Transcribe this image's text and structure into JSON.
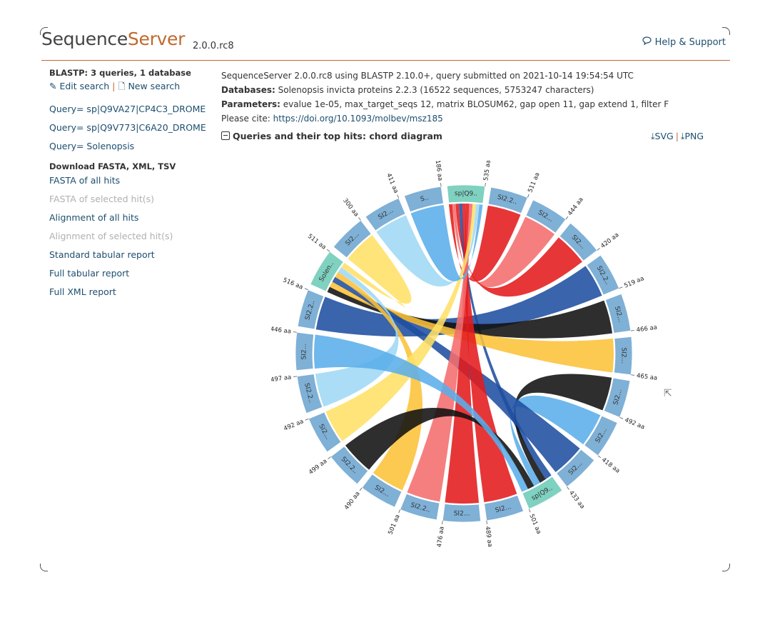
{
  "app": {
    "logo_seq": "Sequence",
    "logo_srv": "Server",
    "version": "2.0.0.rc8",
    "help": "Help & Support"
  },
  "sidebar": {
    "title": "BLASTP: 3 queries, 1 database",
    "edit_search": "Edit search",
    "new_search": "New search",
    "queries": [
      "Query= sp|Q9VA27|CP4C3_DROME",
      "Query= sp|Q9V773|C6A20_DROME",
      "Query= Solenopsis"
    ],
    "download_title": "Download FASTA, XML, TSV",
    "downloads": [
      {
        "label": "FASTA of all hits",
        "enabled": true
      },
      {
        "label": "FASTA of selected hit(s)",
        "enabled": false
      },
      {
        "label": "Alignment of all hits",
        "enabled": true
      },
      {
        "label": "Alignment of selected hit(s)",
        "enabled": false
      },
      {
        "label": "Standard tabular report",
        "enabled": true
      },
      {
        "label": "Full tabular report",
        "enabled": true
      },
      {
        "label": "Full XML report",
        "enabled": true
      }
    ]
  },
  "report": {
    "line1": "SequenceServer 2.0.0.rc8 using BLASTP 2.10.0+, query submitted on 2021-10-14 19:54:54 UTC",
    "db_label": "Databases:",
    "db_value": " Solenopsis invicta proteins 2.2.3 (16522 sequences, 5753247 characters)",
    "params_label": "Parameters:",
    "params_value": " evalue 1e-05, max_target_seqs 12, matrix BLOSUM62, gap open 11, gap extend 1, filter F",
    "cite_label": "Please cite: ",
    "cite_link": "https://doi.org/10.1093/molbev/msz185"
  },
  "chord": {
    "heading": "Queries and their top hits: chord diagram",
    "svg_label": "SVG",
    "png_label": "PNG",
    "colors": {
      "query": "#7fd1c0",
      "hit": "#7fb0d6",
      "navy": "#1f4fa0",
      "red": "#e41a1c",
      "lightred": "#f46d6d",
      "yellow": "#ffe066",
      "gold": "#fcc239",
      "lightblue": "#9fd8f5",
      "skyblue": "#5aaeea",
      "black": "#111111"
    },
    "arcs": [
      {
        "label": "sp|Q9..",
        "length": "535 aa",
        "type": "query"
      },
      {
        "label": "SI2.2..",
        "length": "511 aa",
        "type": "hit"
      },
      {
        "label": "SI2...",
        "length": "444 aa",
        "type": "hit"
      },
      {
        "label": "SI2...",
        "length": "420 aa",
        "type": "hit"
      },
      {
        "label": "SI2.2..",
        "length": "519 aa",
        "type": "hit"
      },
      {
        "label": "SI2...",
        "length": "466 aa",
        "type": "hit"
      },
      {
        "label": "SI2...",
        "length": "465 aa",
        "type": "hit"
      },
      {
        "label": "SI2...",
        "length": "492 aa",
        "type": "hit"
      },
      {
        "label": "SI2...",
        "length": "418 aa",
        "type": "hit"
      },
      {
        "label": "SI2...",
        "length": "433 aa",
        "type": "hit"
      },
      {
        "label": "sp|Q9..",
        "length": "501 aa",
        "type": "query"
      },
      {
        "label": "SI2...",
        "length": "489 aa",
        "type": "hit"
      },
      {
        "label": "SI2...",
        "length": "476 aa",
        "type": "hit"
      },
      {
        "label": "SI2.2..",
        "length": "501 aa",
        "type": "hit"
      },
      {
        "label": "SI2...",
        "length": "490 aa",
        "type": "hit"
      },
      {
        "label": "SI2.2..",
        "length": "499 aa",
        "type": "hit"
      },
      {
        "label": "SI2...",
        "length": "492 aa",
        "type": "hit"
      },
      {
        "label": "SI2.2..",
        "length": "497 aa",
        "type": "hit"
      },
      {
        "label": "SI2...",
        "length": "446 aa",
        "type": "hit"
      },
      {
        "label": "SI2.2..",
        "length": "516 aa",
        "type": "hit"
      },
      {
        "label": "Solen..",
        "length": "511 aa",
        "type": "query"
      },
      {
        "label": "SI2...",
        "length": "300 aa",
        "type": "hit"
      },
      {
        "label": "SI2...",
        "length": "411 aa",
        "type": "hit"
      },
      {
        "label": "S..",
        "length": "186 aa",
        "type": "hit"
      }
    ],
    "ribbons": [
      {
        "from": 0,
        "to": 1,
        "color": "red"
      },
      {
        "from": 0,
        "to": 2,
        "color": "lightred"
      },
      {
        "from": 0,
        "to": 3,
        "color": "red"
      },
      {
        "from": 0,
        "to": 10,
        "color": "navy"
      },
      {
        "from": 19,
        "to": 4,
        "color": "navy"
      },
      {
        "from": 20,
        "to": 5,
        "color": "black"
      },
      {
        "from": 20,
        "to": 6,
        "color": "gold"
      },
      {
        "from": 10,
        "to": 7,
        "color": "black"
      },
      {
        "from": 10,
        "to": 8,
        "color": "skyblue"
      },
      {
        "from": 20,
        "to": 9,
        "color": "navy"
      },
      {
        "from": 0,
        "to": 11,
        "color": "red"
      },
      {
        "from": 0,
        "to": 12,
        "color": "red"
      },
      {
        "from": 0,
        "to": 13,
        "color": "lightred"
      },
      {
        "from": 20,
        "to": 14,
        "color": "gold"
      },
      {
        "from": 10,
        "to": 15,
        "color": "black"
      },
      {
        "from": 0,
        "to": 16,
        "color": "yellow"
      },
      {
        "from": 20,
        "to": 17,
        "color": "lightblue"
      },
      {
        "from": 10,
        "to": 18,
        "color": "skyblue"
      },
      {
        "from": 20,
        "to": 21,
        "color": "yellow"
      },
      {
        "from": 0,
        "to": 22,
        "color": "lightblue"
      },
      {
        "from": 0,
        "to": 23,
        "color": "skyblue"
      }
    ]
  }
}
